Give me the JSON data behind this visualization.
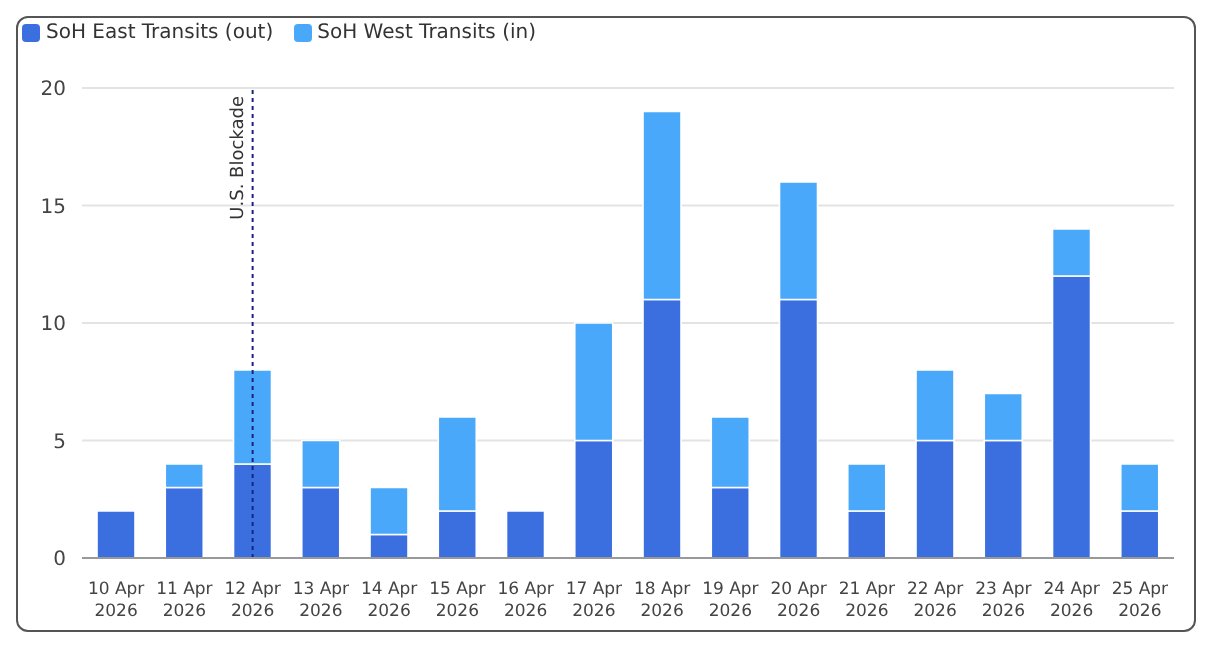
{
  "chart_data": {
    "type": "bar",
    "stacked": true,
    "categories": [
      "10 Apr 2026",
      "11 Apr 2026",
      "12 Apr 2026",
      "13 Apr 2026",
      "14 Apr 2026",
      "15 Apr 2026",
      "16 Apr 2026",
      "17 Apr 2026",
      "18 Apr 2026",
      "19 Apr 2026",
      "20 Apr 2026",
      "21 Apr 2026",
      "22 Apr 2026",
      "23 Apr 2026",
      "24 Apr 2026",
      "25 Apr 2026"
    ],
    "series": [
      {
        "name": "SoH East Transits (out)",
        "color": "#3b6fe0",
        "values": [
          2,
          3,
          4,
          3,
          1,
          2,
          2,
          5,
          11,
          3,
          11,
          2,
          5,
          5,
          12,
          2
        ]
      },
      {
        "name": "SoH West Transits (in)",
        "color": "#4aa8fb",
        "values": [
          0,
          1,
          4,
          2,
          2,
          4,
          0,
          5,
          8,
          3,
          5,
          2,
          3,
          2,
          2,
          2
        ]
      }
    ],
    "ylim": [
      0,
      20
    ],
    "yticks": [
      0,
      5,
      10,
      15,
      20
    ],
    "grid": "y",
    "legend": "top left",
    "ref_lines": [
      {
        "axis": "x",
        "value": "12 Apr 2026",
        "label": "U.S. Blockade",
        "color": "#1a237e",
        "line_style": "dotted"
      }
    ]
  }
}
